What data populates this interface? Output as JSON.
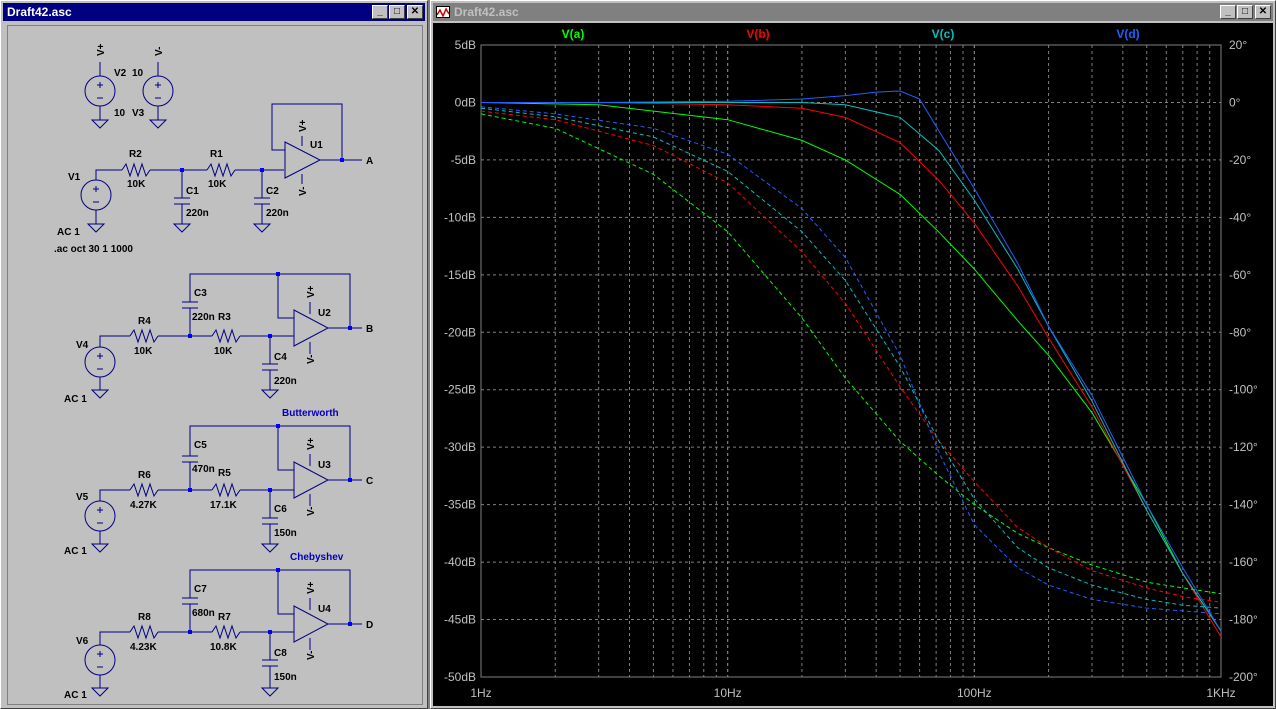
{
  "schematic": {
    "title": "Draft42.asc",
    "labels": {
      "v2": "V2",
      "v3": "V3",
      "v2_val": "10",
      "v3_val": "10",
      "vplus": "V+",
      "vminus": "V-",
      "v1": "V1",
      "r2": "R2",
      "r2v": "10K",
      "r1": "R1",
      "r1v": "10K",
      "c1": "C1",
      "c1v": "220n",
      "c2": "C2",
      "c2v": "220n",
      "u1": "U1",
      "outA": "A",
      "v1ac": "AC 1",
      "directive": ".ac oct 30 1 1000",
      "c3": "C3",
      "c3v": "220n",
      "r3": "R3",
      "r3v": "10K",
      "r4": "R4",
      "r4v": "10K",
      "v4": "V4",
      "v4ac": "AC 1",
      "c4": "C4",
      "c4v": "220n",
      "u2": "U2",
      "outB": "B",
      "butterworth": "Butterworth",
      "c5": "C5",
      "c5v": "470n",
      "r5": "R5",
      "r5v": "17.1K",
      "r6": "R6",
      "r6v": "4.27K",
      "v5": "V5",
      "v5ac": "AC 1",
      "c6": "C6",
      "c6v": "150n",
      "u3": "U3",
      "outC": "C",
      "chebyshev": "Chebyshev",
      "c7": "C7",
      "c7v": "680n",
      "r7": "R7",
      "r7v": "10.8K",
      "r8": "R8",
      "r8v": "4.23K",
      "v6": "V6",
      "v6ac": "AC 1",
      "c8": "C8",
      "c8v": "150n",
      "u4": "U4",
      "outD": "D"
    }
  },
  "plot": {
    "title": "Draft42.asc",
    "colors": {
      "bg": "#000000",
      "grid": "#808080",
      "text": "#c0c0c0",
      "a": "#00ff00",
      "b": "#ff0000",
      "c": "#00c0c0",
      "d": "#2060ff"
    },
    "traces": [
      "V(a)",
      "V(b)",
      "V(c)",
      "V(d)"
    ]
  },
  "chart_data": {
    "type": "line",
    "xscale": "log",
    "xlim": [
      1,
      1000
    ],
    "ylim": [
      -50,
      5
    ],
    "y2lim": [
      -200,
      20
    ],
    "xticks": [
      "1Hz",
      "10Hz",
      "100Hz",
      "1KHz"
    ],
    "yticks": [
      "5dB",
      "0dB",
      "-5dB",
      "-10dB",
      "-15dB",
      "-20dB",
      "-25dB",
      "-30dB",
      "-35dB",
      "-40dB",
      "-45dB",
      "-50dB"
    ],
    "y2ticks": [
      "20°",
      "0°",
      "-20°",
      "-40°",
      "-60°",
      "-80°",
      "-100°",
      "-120°",
      "-140°",
      "-160°",
      "-180°",
      "-200°"
    ],
    "series": [
      {
        "name": "V(a)",
        "axis": "magnitude",
        "x": [
          1,
          3,
          10,
          20,
          30,
          50,
          72,
          100,
          150,
          200,
          300,
          500,
          700,
          1000
        ],
        "y": [
          0,
          -0.2,
          -1.5,
          -3.3,
          -5,
          -8,
          -11.3,
          -14.5,
          -19,
          -22,
          -27,
          -35,
          -41,
          -46
        ]
      },
      {
        "name": "V(b)",
        "axis": "magnitude",
        "x": [
          1,
          3,
          10,
          20,
          30,
          50,
          72,
          100,
          150,
          200,
          300,
          500,
          700,
          1000
        ],
        "y": [
          0,
          0,
          -0.2,
          -0.5,
          -1.3,
          -3.5,
          -6.8,
          -10.5,
          -16,
          -20.5,
          -26.5,
          -35.5,
          -41,
          -46.5
        ]
      },
      {
        "name": "V(c)",
        "axis": "magnitude",
        "x": [
          1,
          3,
          10,
          20,
          30,
          50,
          72,
          100,
          150,
          200,
          300,
          500,
          700,
          1000
        ],
        "y": [
          0,
          0,
          0,
          0,
          -0.2,
          -1.3,
          -4.2,
          -8.5,
          -14.5,
          -19.5,
          -26,
          -35.5,
          -41,
          -46
        ]
      },
      {
        "name": "V(d)",
        "axis": "magnitude",
        "x": [
          1,
          3,
          10,
          20,
          30,
          40,
          50,
          60,
          72,
          100,
          150,
          200,
          300,
          500,
          700,
          1000
        ],
        "y": [
          0,
          0,
          0.1,
          0.3,
          0.6,
          0.9,
          1,
          0.3,
          -2.5,
          -7.5,
          -14,
          -19.5,
          -25.5,
          -35,
          -40.5,
          -46
        ]
      },
      {
        "name": "V(a) phase",
        "axis": "phase",
        "x": [
          1,
          2,
          5,
          10,
          20,
          30,
          50,
          72,
          100,
          150,
          200,
          300,
          500,
          700,
          1000
        ],
        "y": [
          -4,
          -9,
          -25,
          -45,
          -75,
          -96,
          -118,
          -130,
          -140,
          -150,
          -155,
          -161,
          -167,
          -169,
          -171
        ]
      },
      {
        "name": "V(b) phase",
        "axis": "phase",
        "x": [
          1,
          2,
          5,
          10,
          20,
          30,
          50,
          72,
          100,
          150,
          200,
          300,
          500,
          700,
          1000
        ],
        "y": [
          -3,
          -6,
          -15,
          -28,
          -52,
          -70,
          -99,
          -118,
          -132,
          -148,
          -155,
          -163,
          -169,
          -172,
          -174
        ]
      },
      {
        "name": "V(c) phase",
        "axis": "phase",
        "x": [
          1,
          2,
          5,
          10,
          20,
          30,
          50,
          72,
          100,
          150,
          200,
          300,
          500,
          700,
          1000
        ],
        "y": [
          -2,
          -5,
          -12,
          -24,
          -45,
          -62,
          -92,
          -118,
          -138,
          -155,
          -162,
          -168,
          -173,
          -175,
          -176
        ]
      },
      {
        "name": "V(d) phase",
        "axis": "phase",
        "x": [
          1,
          2,
          5,
          10,
          20,
          30,
          50,
          72,
          100,
          150,
          200,
          300,
          500,
          700,
          1000
        ],
        "y": [
          -1.5,
          -4,
          -9,
          -18,
          -37,
          -54,
          -88,
          -122,
          -147,
          -162,
          -168,
          -173,
          -176,
          -177,
          -178
        ]
      }
    ]
  }
}
